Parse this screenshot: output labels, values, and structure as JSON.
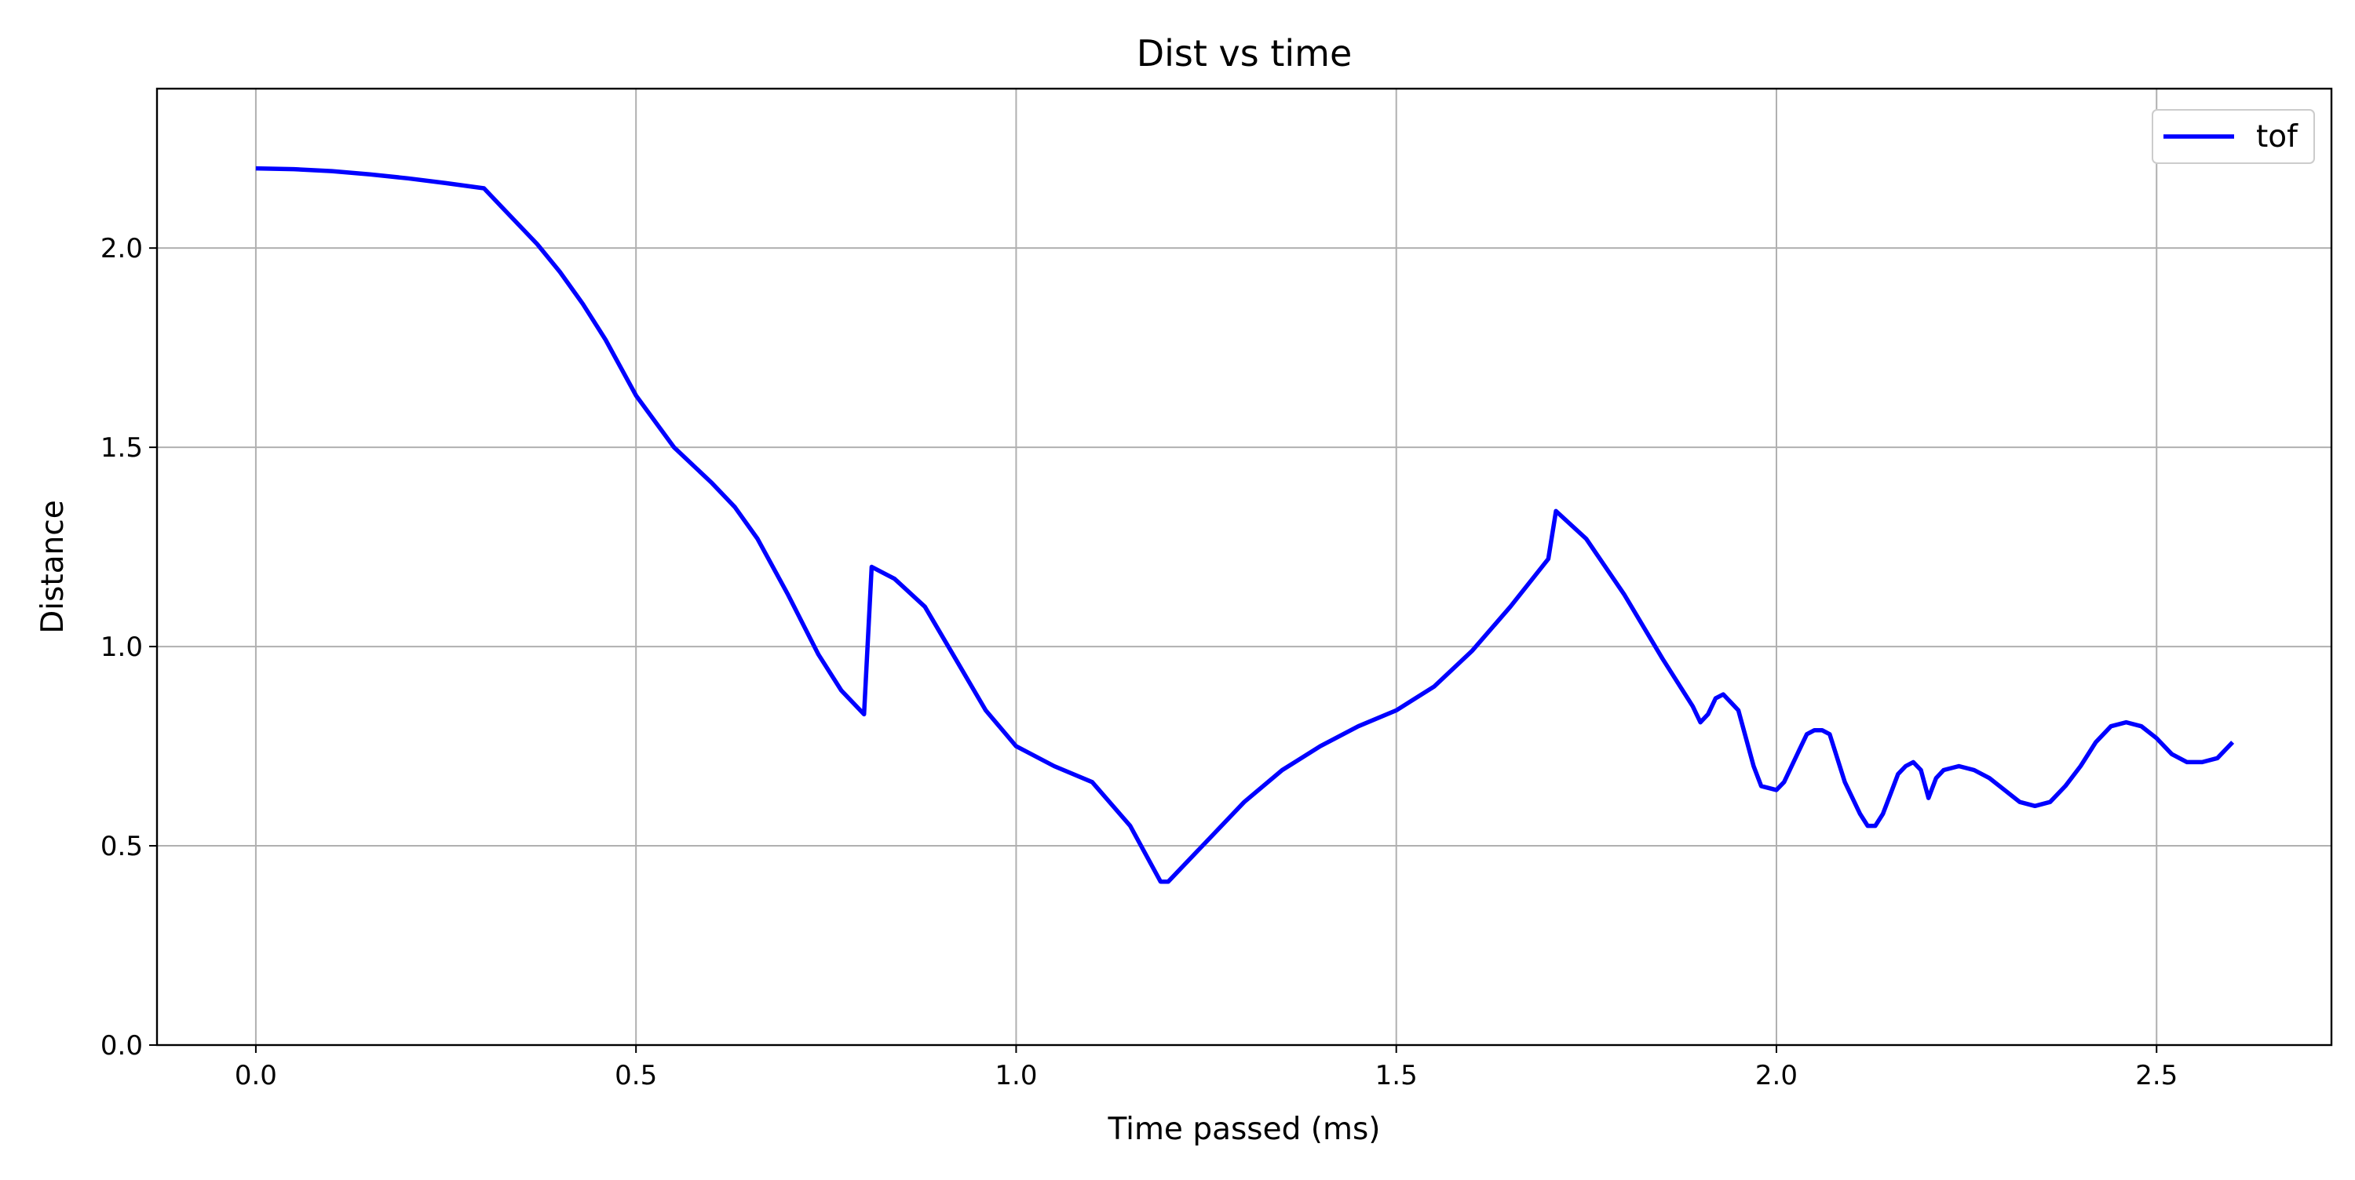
{
  "chart_data": {
    "type": "line",
    "title": "Dist vs time",
    "xlabel": "Time passed (ms)",
    "ylabel": "Distance",
    "xlim": [
      -0.13,
      2.73
    ],
    "ylim": [
      0.0,
      2.4
    ],
    "x_ticks": [
      0.0,
      0.5,
      1.0,
      1.5,
      2.0,
      2.5
    ],
    "x_tick_labels": [
      "0.0",
      "0.5",
      "1.0",
      "1.5",
      "2.0",
      "2.5"
    ],
    "y_ticks": [
      0.0,
      0.5,
      1.0,
      1.5,
      2.0
    ],
    "y_tick_labels": [
      "0.0",
      "0.5",
      "1.0",
      "1.5",
      "2.0"
    ],
    "grid": true,
    "legend_position": "upper right",
    "series": [
      {
        "name": "tof",
        "color": "#0000ff",
        "x": [
          0.0,
          0.05,
          0.1,
          0.15,
          0.2,
          0.25,
          0.3,
          0.33,
          0.37,
          0.4,
          0.43,
          0.46,
          0.5,
          0.55,
          0.6,
          0.63,
          0.66,
          0.7,
          0.74,
          0.77,
          0.8,
          0.81,
          0.84,
          0.88,
          0.92,
          0.96,
          1.0,
          1.05,
          1.1,
          1.15,
          1.19,
          1.2,
          1.25,
          1.3,
          1.35,
          1.4,
          1.45,
          1.5,
          1.55,
          1.6,
          1.65,
          1.7,
          1.71,
          1.75,
          1.8,
          1.85,
          1.89,
          1.9,
          1.91,
          1.92,
          1.93,
          1.94,
          1.95,
          1.97,
          1.98,
          2.0,
          2.01,
          2.03,
          2.04,
          2.05,
          2.06,
          2.07,
          2.09,
          2.11,
          2.12,
          2.13,
          2.14,
          2.15,
          2.16,
          2.17,
          2.18,
          2.19,
          2.2,
          2.21,
          2.22,
          2.24,
          2.26,
          2.28,
          2.3,
          2.32,
          2.34,
          2.36,
          2.38,
          2.4,
          2.42,
          2.44,
          2.46,
          2.48,
          2.5,
          2.52,
          2.54,
          2.56,
          2.58,
          2.6
        ],
        "y": [
          2.2,
          2.198,
          2.193,
          2.185,
          2.175,
          2.163,
          2.15,
          2.09,
          2.01,
          1.94,
          1.86,
          1.77,
          1.63,
          1.5,
          1.41,
          1.35,
          1.27,
          1.13,
          0.98,
          0.89,
          0.83,
          1.2,
          1.17,
          1.1,
          0.97,
          0.84,
          0.75,
          0.7,
          0.66,
          0.55,
          0.41,
          0.41,
          0.51,
          0.61,
          0.69,
          0.75,
          0.8,
          0.84,
          0.9,
          0.99,
          1.1,
          1.22,
          1.34,
          1.27,
          1.13,
          0.97,
          0.85,
          0.81,
          0.83,
          0.87,
          0.88,
          0.86,
          0.84,
          0.7,
          0.65,
          0.64,
          0.66,
          0.74,
          0.78,
          0.79,
          0.79,
          0.78,
          0.66,
          0.58,
          0.55,
          0.55,
          0.58,
          0.63,
          0.68,
          0.7,
          0.71,
          0.69,
          0.62,
          0.67,
          0.69,
          0.7,
          0.69,
          0.67,
          0.64,
          0.61,
          0.6,
          0.61,
          0.65,
          0.7,
          0.76,
          0.8,
          0.81,
          0.8,
          0.77,
          0.73,
          0.71,
          0.71,
          0.72,
          0.76
        ]
      }
    ]
  }
}
